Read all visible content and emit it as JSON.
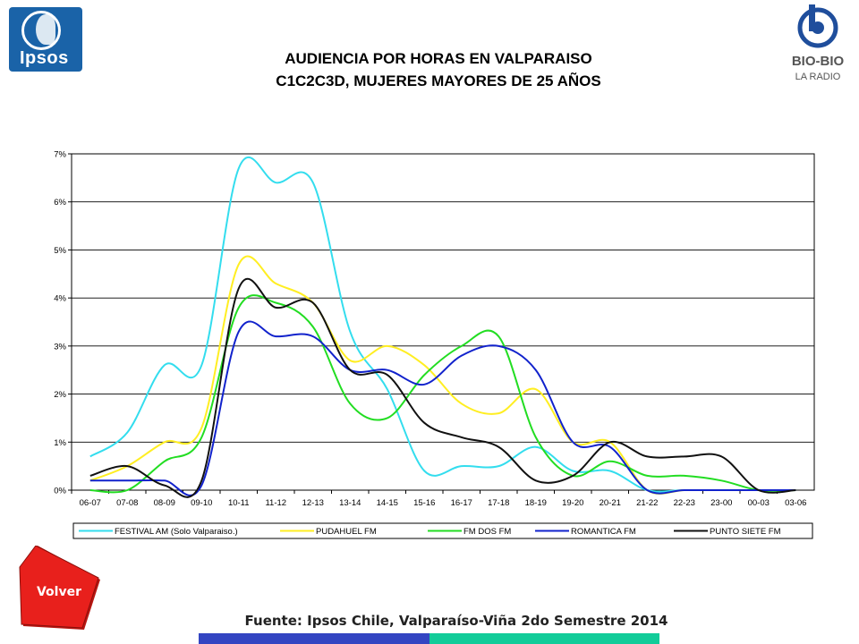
{
  "header": {
    "title_line1": "AUDIENCIA POR HORAS EN VALPARAISO",
    "title_line2": "C1C2C3D, MUJERES MAYORES DE 25 AÑOS"
  },
  "logos": {
    "left_text": "Ipsos",
    "right_text_1": "BIO-BIO",
    "right_text_2": "LA RADIO"
  },
  "volver_button_label": "Volver",
  "source_text": "Fuente: Ipsos Chile, Valparaíso-Viña 2do Semestre 2014",
  "colors": {
    "ipsos_blue": "#1a63a8",
    "volver_red": "#e8201c",
    "footer_blue": "#3345c2",
    "footer_teal": "#12cc99"
  },
  "chart_data": {
    "type": "line",
    "title": "",
    "xlabel": "",
    "ylabel": "",
    "ylim": [
      0,
      7
    ],
    "y_ticks": [
      "0%",
      "1%",
      "2%",
      "3%",
      "4%",
      "5%",
      "6%",
      "7%"
    ],
    "grid": true,
    "legend_position": "bottom",
    "categories": [
      "06-07",
      "07-08",
      "08-09",
      "09-10",
      "10-11",
      "11-12",
      "12-13",
      "13-14",
      "14-15",
      "15-16",
      "16-17",
      "17-18",
      "18-19",
      "19-20",
      "20-21",
      "21-22",
      "22-23",
      "23-00",
      "00-03",
      "03-06"
    ],
    "series": [
      {
        "name": "FESTIVAL AM (Solo Valparaiso.)",
        "color": "#33ddee",
        "values": [
          0.7,
          1.2,
          2.6,
          2.6,
          6.7,
          6.4,
          6.4,
          3.3,
          2.1,
          0.4,
          0.5,
          0.5,
          0.9,
          0.4,
          0.4,
          0.0,
          0.0,
          0.0,
          0.0,
          0.0
        ]
      },
      {
        "name": "PUDAHUEL FM",
        "color": "#ffee22",
        "values": [
          0.2,
          0.5,
          1.0,
          1.3,
          4.7,
          4.3,
          3.9,
          2.7,
          3.0,
          2.6,
          1.8,
          1.6,
          2.1,
          1.0,
          1.0,
          0.0,
          0.0,
          0.0,
          0.0,
          0.0
        ]
      },
      {
        "name": "FM DOS FM",
        "color": "#22dd22",
        "values": [
          0.0,
          0.0,
          0.6,
          1.1,
          3.8,
          3.9,
          3.4,
          1.8,
          1.5,
          2.4,
          3.0,
          3.2,
          1.1,
          0.3,
          0.6,
          0.3,
          0.3,
          0.2,
          0.0,
          0.0
        ]
      },
      {
        "name": "ROMANTICA FM",
        "color": "#1122cc",
        "values": [
          0.2,
          0.2,
          0.2,
          0.1,
          3.3,
          3.2,
          3.2,
          2.5,
          2.5,
          2.2,
          2.8,
          3.0,
          2.5,
          1.0,
          0.9,
          0.0,
          0.0,
          0.0,
          0.0,
          0.0
        ]
      },
      {
        "name": "PUNTO SIETE FM",
        "color": "#111111",
        "values": [
          0.3,
          0.5,
          0.1,
          0.2,
          4.2,
          3.8,
          3.9,
          2.5,
          2.4,
          1.4,
          1.1,
          0.9,
          0.2,
          0.3,
          1.0,
          0.7,
          0.7,
          0.7,
          0.0,
          0.0
        ]
      }
    ]
  }
}
